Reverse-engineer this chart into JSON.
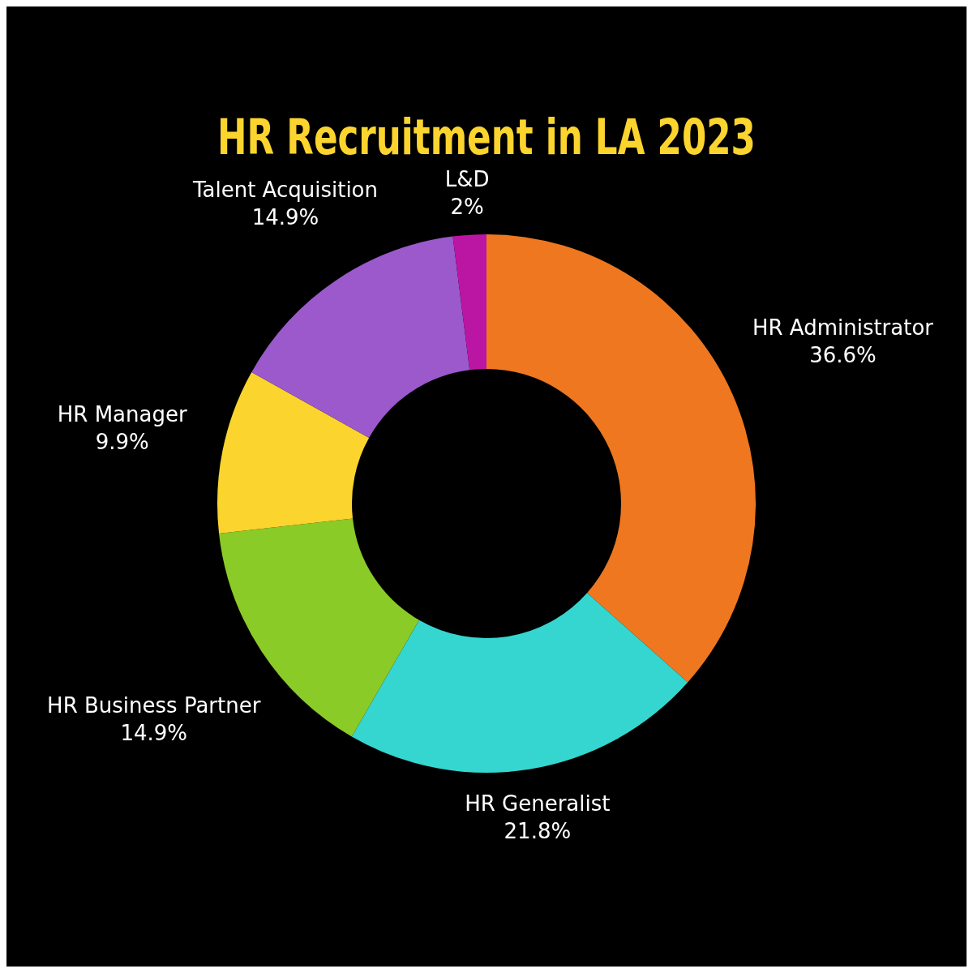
{
  "chart_data": {
    "type": "donut",
    "title": "HR Recruitment in LA 2023",
    "categories": [
      "HR Administrator",
      "HR Generalist",
      "HR Business Partner",
      "HR Manager",
      "Talent Acquisition",
      "L&D"
    ],
    "values": [
      36.6,
      21.8,
      14.9,
      9.9,
      14.9,
      2
    ],
    "value_labels": [
      "36.6%",
      "21.8%",
      "14.9%",
      "9.9%",
      "14.9%",
      "2%"
    ],
    "colors": [
      "#ee7720",
      "#36d6d0",
      "#8acb28",
      "#fbd42e",
      "#9b59cc",
      "#bb16a3"
    ],
    "legend": false
  }
}
